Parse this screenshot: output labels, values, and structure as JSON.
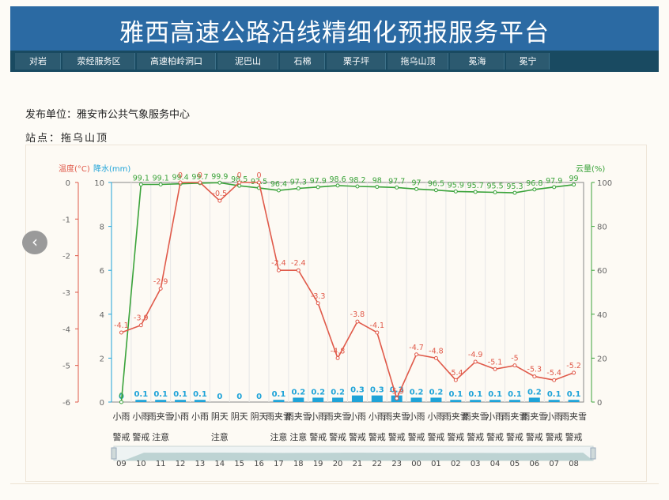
{
  "header": {
    "title": "雅西高速公路沿线精细化预报服务平台"
  },
  "nav": {
    "items": [
      "对岩",
      "荥经服务区",
      "高速柏岭洞口",
      "泥巴山",
      "石棉",
      "栗子坪",
      "拖乌山顶",
      "冕海",
      "冕宁"
    ]
  },
  "publisher": {
    "label": "发布单位：雅安市公共气象服务中心"
  },
  "station": {
    "label": "站点：拖乌山顶"
  },
  "colors": {
    "temperature": "#e05a4a",
    "precipitation": "#1ea3d8",
    "cloud": "#3aa33a",
    "header": "#2b6aa3",
    "nav": "#194a61"
  },
  "chart_data": {
    "type": "line",
    "hours": [
      "09",
      "10",
      "11",
      "12",
      "13",
      "14",
      "15",
      "16",
      "17",
      "18",
      "19",
      "20",
      "21",
      "22",
      "23",
      "00",
      "01",
      "02",
      "03",
      "04",
      "05",
      "06",
      "07",
      "08"
    ],
    "weather_top": [
      "小雨",
      "小雨",
      "雨夹雪",
      "小雨",
      "小雨",
      "阴天",
      "阴天",
      "阴天",
      "雨夹雪",
      "雨夹雪",
      "小雨",
      "雨夹雪",
      "小雨",
      "小雨",
      "雨夹雪",
      "小雨",
      "小雨",
      "雨夹雪",
      "雨夹雪",
      "小雨",
      "雨夹雪",
      "雨夹雪",
      "小雨",
      "雨夹雪"
    ],
    "weather_bottom": [
      "警戒",
      "警戒",
      "注意",
      "",
      "",
      "注意",
      "",
      "",
      "注意",
      "注意",
      "警戒",
      "警戒",
      "警戒",
      "警戒",
      "警戒",
      "警戒",
      "警戒",
      "警戒",
      "警戒",
      "警戒",
      "警戒",
      "警戒",
      "警戒",
      "警戒"
    ],
    "series": [
      {
        "name": "温度(°C)",
        "axis": "temp",
        "values": [
          -4.1,
          -3.9,
          -2.9,
          0,
          0,
          -0.5,
          0,
          0,
          -2.4,
          -2.4,
          -3.3,
          -4.8,
          -3.8,
          -4.1,
          -5.9,
          -4.7,
          -4.8,
          -5.4,
          -4.9,
          -5.1,
          -5,
          -5.3,
          -5.4,
          -5.2
        ]
      },
      {
        "name": "降水(mm)",
        "axis": "precip",
        "values": [
          0,
          0.1,
          0.1,
          0.1,
          0.1,
          0,
          0,
          0,
          0.1,
          0.2,
          0.2,
          0.2,
          0.3,
          0.3,
          0.3,
          0.2,
          0.2,
          0.1,
          0.1,
          0.1,
          0.1,
          0.2,
          0.1,
          0.1
        ]
      },
      {
        "name": "云量(%)",
        "axis": "cloud",
        "values": [
          0,
          99.1,
          99.1,
          99.4,
          99.7,
          99.9,
          98.5,
          97.5,
          96.4,
          97.3,
          97.9,
          98.6,
          98.2,
          98,
          97.7,
          97,
          96.5,
          95.9,
          95.7,
          95.5,
          95.3,
          96.8,
          97.9,
          99
        ]
      }
    ],
    "temp_labels": [
      "-4.1",
      "-3.9",
      "-2.9",
      "0",
      "0",
      "-0.5",
      "0",
      "0",
      "-2.4",
      "-2.4",
      "-3.3",
      "-4.8",
      "-3.8",
      "-4.1",
      "-5.9",
      "-4.7",
      "-4.8",
      "-5.4",
      "-4.9",
      "-5.1",
      "-5",
      "-5.3",
      "-5.4",
      "-5.2"
    ],
    "precip_labels": [
      "0",
      "0.1",
      "0.1",
      "0.1",
      "0.1",
      "0",
      "0",
      "0",
      "0.1",
      "0.2",
      "0.2",
      "0.2",
      "0.3",
      "0.3",
      "0.3",
      "0.2",
      "0.2",
      "0.1",
      "0.1",
      "0.1",
      "0.1",
      "0.2",
      "0.1",
      "0.1"
    ],
    "cloud_labels": [
      "0",
      "99.1",
      "99.1",
      "99.4",
      "99.7",
      "99.9",
      "98.5",
      "97.5",
      "96.4",
      "97.3",
      "97.9",
      "98.6",
      "98.2",
      "98",
      "97.7",
      "97",
      "96.5",
      "95.9",
      "95.7",
      "95.5",
      "95.3",
      "96.8",
      "97.9",
      "99"
    ],
    "axes": {
      "temp": {
        "label": "温度(°C)",
        "min": -6,
        "max": 0,
        "ticks": [
          "0",
          "-1",
          "-2",
          "-3",
          "-4",
          "-5",
          "-6"
        ]
      },
      "precip": {
        "label": "降水(mm)",
        "min": 0,
        "max": 10,
        "ticks": [
          "10",
          "8",
          "6",
          "4",
          "2",
          "0"
        ]
      },
      "cloud": {
        "label": "云量(%)",
        "min": 0,
        "max": 100,
        "ticks": [
          "100",
          "80",
          "60",
          "40",
          "20",
          "0"
        ]
      }
    }
  }
}
